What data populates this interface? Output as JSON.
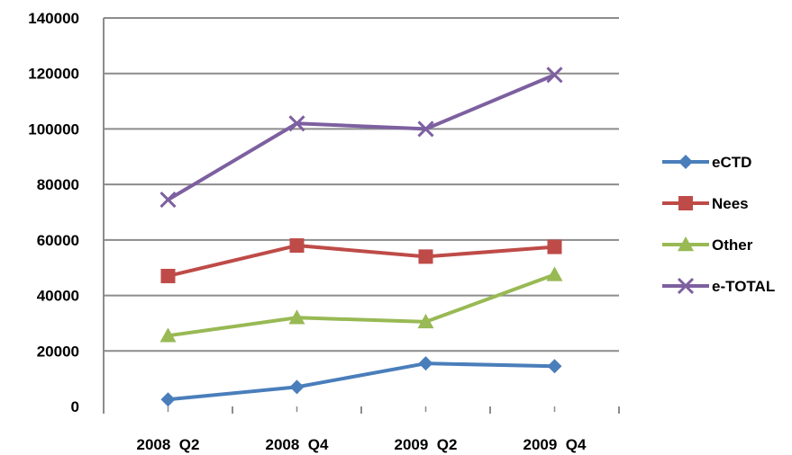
{
  "chart_data": {
    "type": "line",
    "title": "",
    "xlabel": "",
    "ylabel": "",
    "categories": [
      "2008  Q2",
      "2008  Q4",
      "2009  Q2",
      "2009  Q4"
    ],
    "ylim": [
      0,
      140000
    ],
    "ytick_labels": [
      "0",
      "20000",
      "40000",
      "60000",
      "80000",
      "100000",
      "120000",
      "140000"
    ],
    "grid": "horizontal",
    "legend_position": "right",
    "series": [
      {
        "name": "eCTD",
        "color": "#4a7ebb",
        "marker": "diamond",
        "values": [
          2500,
          7000,
          15500,
          14500
        ]
      },
      {
        "name": "Nees",
        "color": "#be4b48",
        "marker": "square",
        "values": [
          47000,
          58000,
          54000,
          57500
        ]
      },
      {
        "name": "Other",
        "color": "#98b954",
        "marker": "triangle",
        "values": [
          25500,
          32000,
          30500,
          47500
        ]
      },
      {
        "name": "e-TOTAL",
        "color": "#7d60a0",
        "marker": "x",
        "values": [
          74500,
          102000,
          100000,
          119500
        ]
      }
    ]
  }
}
